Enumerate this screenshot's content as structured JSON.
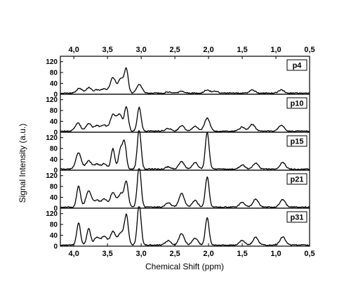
{
  "chart_data": {
    "type": "line",
    "title": "",
    "xlabel": "Chemical Shift (ppm)",
    "ylabel": "Signal Intensity (a.u.)",
    "x_axis": {
      "reversed": true,
      "xlim": [
        4.2,
        0.5
      ],
      "ticks": [
        4.0,
        3.5,
        3.0,
        2.5,
        2.0,
        1.5,
        1.0,
        0.5
      ],
      "tick_labels": [
        "4,0",
        "3,5",
        "3,0",
        "2,5",
        "2,0",
        "1,5",
        "1,0",
        "0,5"
      ]
    },
    "y_axis": {
      "ylim": [
        0,
        140
      ],
      "ticks": [
        0,
        40,
        80,
        120
      ],
      "tick_labels": [
        "0",
        "40",
        "80",
        "120"
      ]
    },
    "grid": false,
    "line_color": "#000000",
    "baseline": 4,
    "panels": [
      {
        "label": "p4",
        "peaks": [
          [
            3.92,
            18
          ],
          [
            3.78,
            20
          ],
          [
            3.66,
            12
          ],
          [
            3.55,
            16
          ],
          [
            3.42,
            57
          ],
          [
            3.3,
            55
          ],
          [
            3.22,
            85
          ],
          [
            3.03,
            32
          ],
          [
            2.6,
            4
          ],
          [
            2.4,
            7
          ],
          [
            2.02,
            12
          ],
          [
            1.9,
            8
          ],
          [
            1.35,
            12
          ],
          [
            0.92,
            12
          ]
        ]
      },
      {
        "label": "p10",
        "peaks": [
          [
            3.94,
            30
          ],
          [
            3.78,
            28
          ],
          [
            3.66,
            20
          ],
          [
            3.55,
            22
          ],
          [
            3.42,
            60
          ],
          [
            3.32,
            60
          ],
          [
            3.22,
            88
          ],
          [
            3.03,
            88
          ],
          [
            2.6,
            10
          ],
          [
            2.4,
            20
          ],
          [
            2.2,
            18
          ],
          [
            2.02,
            48
          ],
          [
            1.5,
            15
          ],
          [
            1.35,
            25
          ],
          [
            0.92,
            22
          ]
        ]
      },
      {
        "label": "p15",
        "peaks": [
          [
            3.93,
            60
          ],
          [
            3.78,
            30
          ],
          [
            3.66,
            18
          ],
          [
            3.55,
            20
          ],
          [
            3.42,
            75
          ],
          [
            3.31,
            68
          ],
          [
            3.25,
            100
          ],
          [
            3.03,
            148
          ],
          [
            2.6,
            8
          ],
          [
            2.4,
            28
          ],
          [
            2.2,
            24
          ],
          [
            2.02,
            135
          ],
          [
            1.5,
            15
          ],
          [
            1.3,
            22
          ],
          [
            0.9,
            25
          ]
        ]
      },
      {
        "label": "p21",
        "peaks": [
          [
            3.93,
            78
          ],
          [
            3.78,
            60
          ],
          [
            3.66,
            25
          ],
          [
            3.55,
            30
          ],
          [
            3.42,
            53
          ],
          [
            3.3,
            50
          ],
          [
            3.22,
            90
          ],
          [
            3.03,
            152
          ],
          [
            2.6,
            16
          ],
          [
            2.4,
            50
          ],
          [
            2.2,
            24
          ],
          [
            2.02,
            112
          ],
          [
            1.5,
            18
          ],
          [
            1.3,
            30
          ],
          [
            0.9,
            28
          ]
        ]
      },
      {
        "label": "p31",
        "peaks": [
          [
            3.93,
            82
          ],
          [
            3.78,
            62
          ],
          [
            3.66,
            28
          ],
          [
            3.55,
            32
          ],
          [
            3.42,
            50
          ],
          [
            3.3,
            45
          ],
          [
            3.22,
            108
          ],
          [
            3.03,
            150
          ],
          [
            2.6,
            16
          ],
          [
            2.4,
            42
          ],
          [
            2.2,
            26
          ],
          [
            2.02,
            100
          ],
          [
            1.5,
            17
          ],
          [
            1.3,
            28
          ],
          [
            0.9,
            30
          ]
        ]
      }
    ]
  }
}
